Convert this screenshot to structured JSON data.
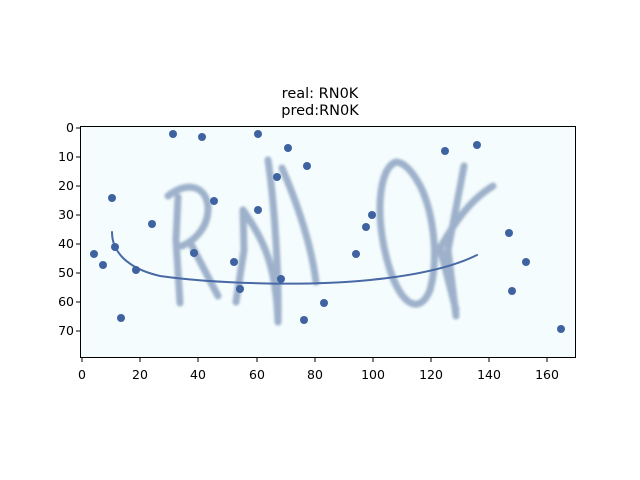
{
  "title": {
    "line1": "real: RN0K",
    "line2": "pred:RN0K"
  },
  "axes": {
    "x_ticks": [
      "0",
      "20",
      "40",
      "60",
      "80",
      "100",
      "120",
      "140",
      "160"
    ],
    "y_ticks": [
      "0",
      "10",
      "20",
      "30",
      "40",
      "50",
      "60",
      "70"
    ],
    "xlim": [
      0,
      170
    ],
    "ylim": [
      80,
      0
    ]
  },
  "image": {
    "background_color": "#f4fcfd",
    "stroke_color": "#9eb1cb",
    "noise_color": "#3f62a0",
    "curve_color": "#4869a6"
  }
}
